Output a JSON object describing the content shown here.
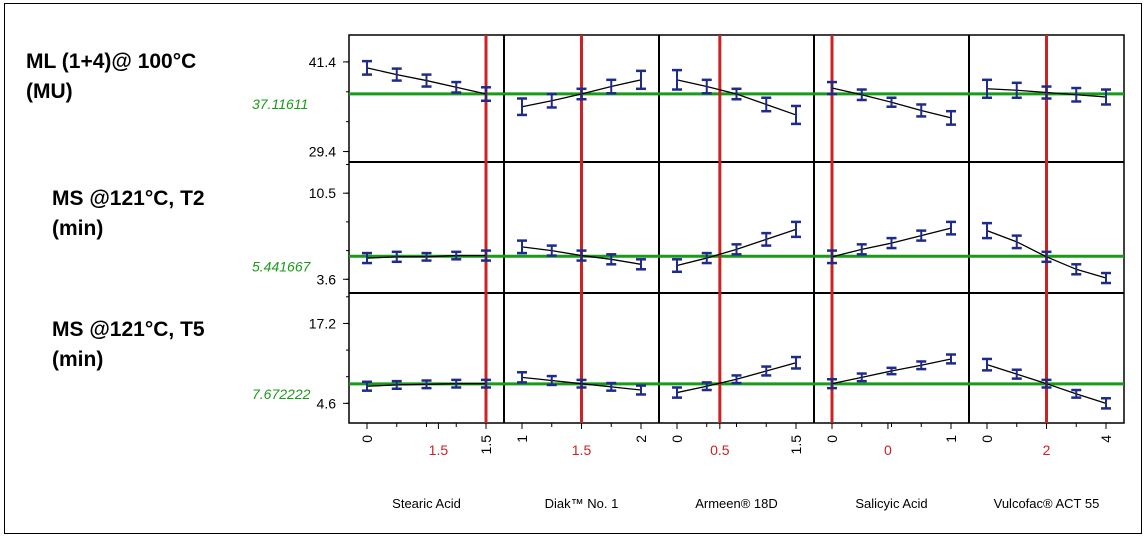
{
  "chart_data": {
    "type": "line",
    "title": "",
    "colors": {
      "trace": "#1f2b8a",
      "current_value_line": "#1a9a1a",
      "current_setting_line": "#cc2222",
      "grid": "#000000"
    },
    "factors": [
      {
        "name": "Stearic Acid",
        "tick_labels": [
          "0",
          "1.5",
          "1.5"
        ],
        "tick_positions": [
          0,
          0.6,
          1
        ],
        "current_label": "1.5",
        "current_position": 1
      },
      {
        "name": "Diak™ No. 1",
        "tick_labels": [
          "1",
          "1.5",
          "2"
        ],
        "tick_positions": [
          0,
          0.5,
          1
        ],
        "current_label": "1.5",
        "current_position": 0.5
      },
      {
        "name": "Armeen® 18D",
        "tick_labels": [
          "0",
          "0.5",
          "1.5"
        ],
        "tick_positions": [
          0,
          0.36,
          1
        ],
        "current_label": "0.5",
        "current_position": 0.36
      },
      {
        "name": "Salicyic Acid",
        "tick_labels": [
          "0",
          "0",
          "1"
        ],
        "tick_positions": [
          0,
          0.47,
          1
        ],
        "current_label": "0",
        "current_position": 0
      },
      {
        "name": "Vulcofac® ACT 55",
        "tick_labels": [
          "0",
          "2",
          "4"
        ],
        "tick_positions": [
          0,
          0.5,
          1
        ],
        "current_label": "2",
        "current_position": 0.5
      }
    ],
    "responses": [
      {
        "label_line1": "ML (1+4)@ 100°C",
        "label_line2": "(MU)",
        "current_value": "37.11611",
        "current_numeric": 37.11611,
        "ylim": [
          28.0,
          45.0
        ],
        "y_ticks": [
          "41.4",
          "29.4"
        ],
        "y_tick_values": [
          41.4,
          29.4
        ],
        "series": [
          {
            "factor": "Stearic Acid",
            "y": [
              40.6,
              39.7,
              38.9,
              38.0,
              37.1
            ],
            "err": [
              0.9,
              0.8,
              0.8,
              0.7,
              0.9
            ]
          },
          {
            "factor": "Diak™ No. 1",
            "y": [
              35.4,
              36.2,
              37.1,
              38.1,
              39.0
            ],
            "err": [
              1.1,
              0.9,
              0.7,
              0.9,
              1.2
            ]
          },
          {
            "factor": "Armeen® 18D",
            "y": [
              39.0,
              38.1,
              37.1,
              35.7,
              34.3
            ],
            "err": [
              1.3,
              0.9,
              0.7,
              0.9,
              1.2
            ]
          },
          {
            "factor": "Salicyic Acid",
            "y": [
              37.9,
              37.0,
              36.0,
              34.9,
              33.9
            ],
            "err": [
              0.8,
              0.7,
              0.6,
              0.8,
              0.9
            ]
          },
          {
            "factor": "Vulcofac® ACT 55",
            "y": [
              37.8,
              37.6,
              37.3,
              37.0,
              36.7
            ],
            "err": [
              1.2,
              1.0,
              0.8,
              0.9,
              1.0
            ]
          }
        ]
      },
      {
        "label_line1": "MS @121°C, T2",
        "label_line2": "(min)",
        "current_value": "5.441667",
        "current_numeric": 5.441667,
        "ylim": [
          2.5,
          13.0
        ],
        "y_ticks": [
          "10.5",
          "3.6"
        ],
        "y_tick_values": [
          10.5,
          3.6
        ],
        "series": [
          {
            "factor": "Stearic Acid",
            "y": [
              5.3,
              5.4,
              5.4,
              5.5,
              5.5
            ],
            "err": [
              0.4,
              0.4,
              0.3,
              0.3,
              0.4
            ]
          },
          {
            "factor": "Diak™ No. 1",
            "y": [
              6.2,
              5.9,
              5.5,
              5.2,
              4.8
            ],
            "err": [
              0.5,
              0.4,
              0.4,
              0.4,
              0.4
            ]
          },
          {
            "factor": "Armeen® 18D",
            "y": [
              4.7,
              5.3,
              6.0,
              6.8,
              7.6
            ],
            "err": [
              0.5,
              0.4,
              0.4,
              0.5,
              0.6
            ]
          },
          {
            "factor": "Salicyic Acid",
            "y": [
              5.4,
              6.0,
              6.5,
              7.1,
              7.7
            ],
            "err": [
              0.5,
              0.4,
              0.4,
              0.4,
              0.5
            ]
          },
          {
            "factor": "Vulcofac® ACT 55",
            "y": [
              7.5,
              6.6,
              5.4,
              4.4,
              3.7
            ],
            "err": [
              0.6,
              0.5,
              0.4,
              0.4,
              0.4
            ]
          }
        ]
      },
      {
        "label_line1": "MS @121°C, T5",
        "label_line2": "(min)",
        "current_value": "7.672222",
        "current_numeric": 7.672222,
        "ylim": [
          1.5,
          22.0
        ],
        "y_ticks": [
          "17.2",
          "4.6"
        ],
        "y_tick_values": [
          17.2,
          4.6
        ],
        "series": [
          {
            "factor": "Stearic Acid",
            "y": [
              7.3,
              7.5,
              7.6,
              7.7,
              7.7
            ],
            "err": [
              0.7,
              0.6,
              0.6,
              0.6,
              0.6
            ]
          },
          {
            "factor": "Diak™ No. 1",
            "y": [
              8.7,
              8.2,
              7.7,
              7.2,
              6.7
            ],
            "err": [
              0.8,
              0.7,
              0.6,
              0.6,
              0.7
            ]
          },
          {
            "factor": "Armeen® 18D",
            "y": [
              6.3,
              7.3,
              8.4,
              9.7,
              11.0
            ],
            "err": [
              0.8,
              0.6,
              0.6,
              0.7,
              0.9
            ]
          },
          {
            "factor": "Salicyic Acid",
            "y": [
              7.7,
              8.7,
              9.7,
              10.6,
              11.6
            ],
            "err": [
              0.7,
              0.6,
              0.5,
              0.6,
              0.7
            ]
          },
          {
            "factor": "Vulcofac® ACT 55",
            "y": [
              10.7,
              9.2,
              7.7,
              6.1,
              4.6
            ],
            "err": [
              0.9,
              0.7,
              0.6,
              0.6,
              0.8
            ]
          }
        ]
      }
    ]
  }
}
